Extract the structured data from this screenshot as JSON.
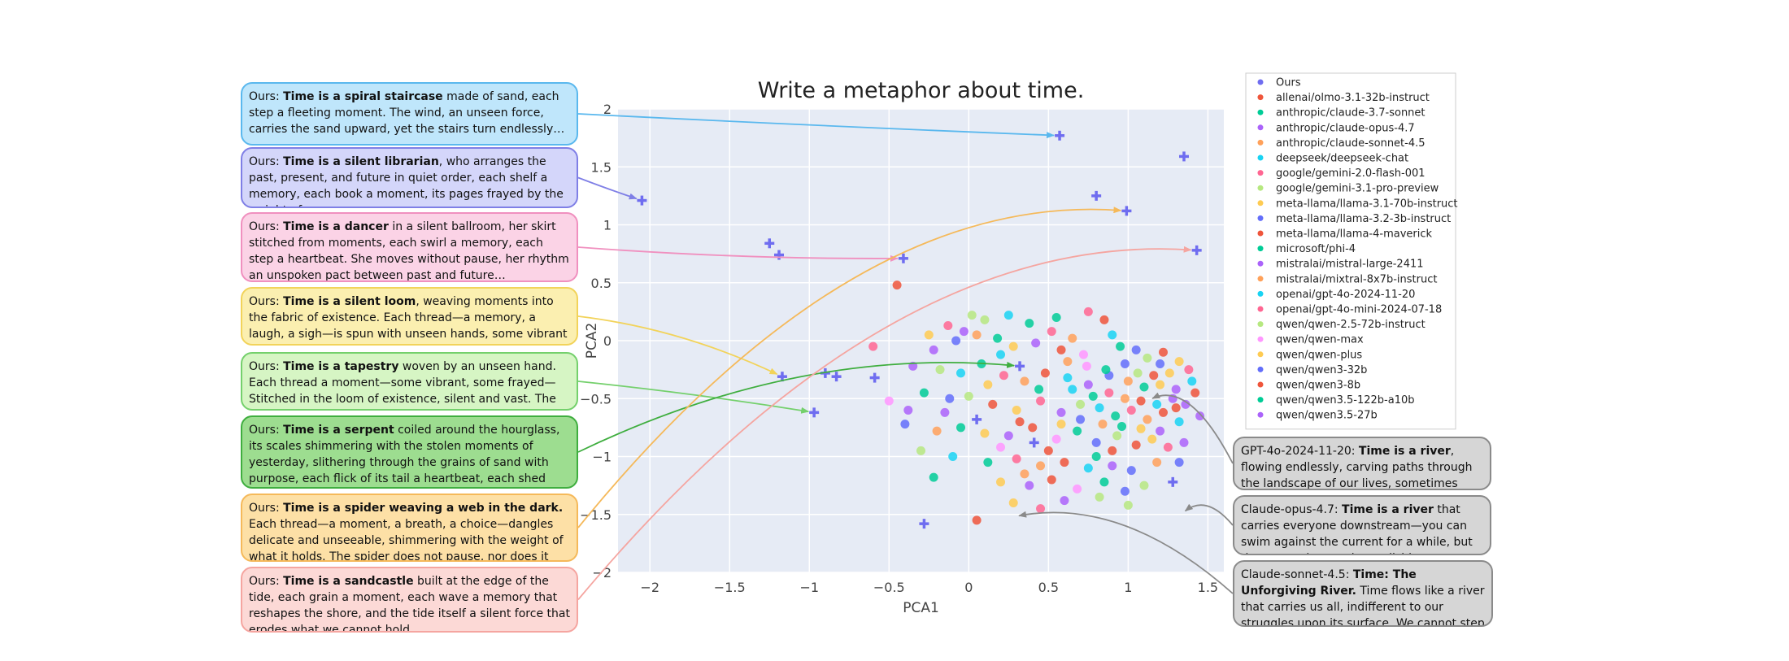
{
  "chart_data": {
    "type": "scatter",
    "title": "Write a metaphor about time.",
    "xlabel": "PCA1",
    "ylabel": "PCA2",
    "xlim": [
      -2.2,
      1.6
    ],
    "ylim": [
      -2.0,
      2.0
    ],
    "xticks": [
      -2,
      -1.5,
      -1,
      -0.5,
      0,
      0.5,
      1,
      1.5
    ],
    "xtick_labels": [
      "−2",
      "−1.5",
      "−1",
      "−0.5",
      "0",
      "0.5",
      "1",
      "1.5"
    ],
    "yticks": [
      2,
      1.5,
      1,
      0.5,
      0,
      -0.5,
      -1,
      -1.5,
      -2
    ],
    "ytick_labels": [
      "2",
      "1.5",
      "1",
      "0.5",
      "0",
      "−0.5",
      "−1",
      "−1.5",
      "−2"
    ],
    "grid": true,
    "background": "#e6ebf5",
    "legend_position": "right, outside plot",
    "ours": {
      "name": "Ours",
      "color": "#6f6df0",
      "marker": "plus",
      "points": [
        [
          0.57,
          1.77
        ],
        [
          1.35,
          1.59
        ],
        [
          -2.05,
          1.21
        ],
        [
          0.8,
          1.25
        ],
        [
          0.99,
          1.12
        ],
        [
          -1.25,
          0.84
        ],
        [
          -1.19,
          0.74
        ],
        [
          -0.41,
          0.71
        ],
        [
          1.43,
          0.78
        ],
        [
          -1.17,
          -0.31
        ],
        [
          -0.97,
          -0.62
        ],
        [
          -0.83,
          -0.31
        ],
        [
          -0.59,
          -0.32
        ],
        [
          -0.9,
          -0.28
        ],
        [
          0.05,
          -0.68
        ],
        [
          0.32,
          -0.22
        ],
        [
          1.28,
          -1.22
        ],
        [
          -0.28,
          -1.58
        ],
        [
          0.41,
          -0.88
        ]
      ]
    },
    "series": [
      {
        "name": "allenai/olmo-3.1-32b-instruct",
        "color": "#ef553b"
      },
      {
        "name": "anthropic/claude-3.7-sonnet",
        "color": "#00cc96"
      },
      {
        "name": "anthropic/claude-opus-4.7",
        "color": "#ab63fa"
      },
      {
        "name": "anthropic/claude-sonnet-4.5",
        "color": "#ffa15a"
      },
      {
        "name": "deepseek/deepseek-chat",
        "color": "#19d3f3"
      },
      {
        "name": "google/gemini-2.0-flash-001",
        "color": "#ff6692"
      },
      {
        "name": "google/gemini-3.1-pro-preview",
        "color": "#b6e880"
      },
      {
        "name": "meta-llama/llama-3.1-70b-instruct",
        "color": "#fecb52"
      },
      {
        "name": "meta-llama/llama-3.2-3b-instruct",
        "color": "#636efa"
      },
      {
        "name": "meta-llama/llama-4-maverick",
        "color": "#ef553b"
      },
      {
        "name": "microsoft/phi-4",
        "color": "#00cc96"
      },
      {
        "name": "mistralai/mistral-large-2411",
        "color": "#ab63fa"
      },
      {
        "name": "mistralai/mixtral-8x7b-instruct",
        "color": "#ffa15a"
      },
      {
        "name": "openai/gpt-4o-2024-11-20",
        "color": "#19d3f3"
      },
      {
        "name": "openai/gpt-4o-mini-2024-07-18",
        "color": "#ff6692"
      },
      {
        "name": "qwen/qwen-2.5-72b-instruct",
        "color": "#b6e880"
      },
      {
        "name": "qwen/qwen-max",
        "color": "#ff97ff"
      },
      {
        "name": "qwen/qwen-plus",
        "color": "#fecb52"
      },
      {
        "name": "qwen/qwen3-32b",
        "color": "#636efa"
      },
      {
        "name": "qwen/qwen3-8b",
        "color": "#ef553b"
      },
      {
        "name": "qwen/qwen3.5-122b-a10b",
        "color": "#00cc96"
      },
      {
        "name": "qwen/qwen3.5-27b",
        "color": "#ab63fa"
      }
    ],
    "cloud_points": [
      [
        -0.45,
        0.48
      ],
      [
        -0.25,
        0.05
      ],
      [
        -0.13,
        0.13
      ],
      [
        -0.03,
        0.08
      ],
      [
        0.1,
        0.18
      ],
      [
        0.25,
        0.22
      ],
      [
        0.38,
        0.15
      ],
      [
        0.52,
        0.08
      ],
      [
        0.65,
        0.02
      ],
      [
        0.85,
        0.18
      ],
      [
        0.9,
        0.05
      ],
      [
        -0.22,
        -0.08
      ],
      [
        -0.08,
        0.0
      ],
      [
        0.05,
        0.05
      ],
      [
        0.18,
        0.02
      ],
      [
        0.28,
        -0.05
      ],
      [
        0.42,
        -0.02
      ],
      [
        0.58,
        -0.08
      ],
      [
        0.72,
        -0.12
      ],
      [
        0.95,
        -0.05
      ],
      [
        1.05,
        -0.08
      ],
      [
        1.12,
        -0.15
      ],
      [
        1.22,
        -0.1
      ],
      [
        1.32,
        -0.18
      ],
      [
        1.38,
        -0.25
      ],
      [
        -0.35,
        -0.22
      ],
      [
        -0.18,
        -0.25
      ],
      [
        -0.05,
        -0.28
      ],
      [
        0.08,
        -0.2
      ],
      [
        0.22,
        -0.3
      ],
      [
        0.35,
        -0.35
      ],
      [
        0.48,
        -0.28
      ],
      [
        0.62,
        -0.32
      ],
      [
        0.75,
        -0.38
      ],
      [
        0.88,
        -0.3
      ],
      [
        1.0,
        -0.35
      ],
      [
        1.1,
        -0.4
      ],
      [
        1.2,
        -0.38
      ],
      [
        1.3,
        -0.42
      ],
      [
        1.42,
        -0.45
      ],
      [
        -0.5,
        -0.52
      ],
      [
        -0.28,
        -0.45
      ],
      [
        -0.12,
        -0.5
      ],
      [
        0.0,
        -0.48
      ],
      [
        0.15,
        -0.55
      ],
      [
        0.3,
        -0.6
      ],
      [
        0.45,
        -0.52
      ],
      [
        0.58,
        -0.62
      ],
      [
        0.7,
        -0.55
      ],
      [
        0.82,
        -0.58
      ],
      [
        0.92,
        -0.65
      ],
      [
        1.02,
        -0.6
      ],
      [
        1.12,
        -0.68
      ],
      [
        1.22,
        -0.62
      ],
      [
        1.32,
        -0.7
      ],
      [
        1.45,
        -0.65
      ],
      [
        -0.4,
        -0.72
      ],
      [
        -0.2,
        -0.78
      ],
      [
        -0.05,
        -0.75
      ],
      [
        0.1,
        -0.8
      ],
      [
        0.25,
        -0.82
      ],
      [
        0.4,
        -0.75
      ],
      [
        0.55,
        -0.85
      ],
      [
        0.68,
        -0.78
      ],
      [
        0.8,
        -0.88
      ],
      [
        0.93,
        -0.82
      ],
      [
        1.05,
        -0.9
      ],
      [
        1.15,
        -0.85
      ],
      [
        1.25,
        -0.92
      ],
      [
        1.35,
        -0.88
      ],
      [
        -0.3,
        -0.95
      ],
      [
        -0.1,
        -1.0
      ],
      [
        0.12,
        -1.05
      ],
      [
        0.3,
        -1.02
      ],
      [
        0.45,
        -1.08
      ],
      [
        0.6,
        -1.05
      ],
      [
        0.75,
        -1.1
      ],
      [
        0.9,
        -1.08
      ],
      [
        1.02,
        -1.12
      ],
      [
        1.18,
        -1.05
      ],
      [
        -0.22,
        -1.18
      ],
      [
        0.2,
        -1.22
      ],
      [
        0.38,
        -1.25
      ],
      [
        0.52,
        -1.2
      ],
      [
        0.68,
        -1.28
      ],
      [
        0.85,
        -1.22
      ],
      [
        0.98,
        -1.3
      ],
      [
        1.1,
        -1.25
      ],
      [
        0.05,
        -1.55
      ],
      [
        0.28,
        -1.4
      ],
      [
        0.45,
        -1.45
      ],
      [
        0.6,
        -1.38
      ],
      [
        0.82,
        -1.35
      ],
      [
        0.65,
        -0.42
      ],
      [
        0.78,
        -0.48
      ],
      [
        0.88,
        -0.45
      ],
      [
        0.98,
        -0.5
      ],
      [
        1.08,
        -0.52
      ],
      [
        1.18,
        -0.55
      ],
      [
        1.28,
        -0.5
      ],
      [
        0.7,
        -0.68
      ],
      [
        0.84,
        -0.72
      ],
      [
        0.96,
        -0.74
      ],
      [
        1.08,
        -0.76
      ],
      [
        1.2,
        -0.78
      ],
      [
        1.3,
        -0.58
      ],
      [
        0.74,
        -0.22
      ],
      [
        0.86,
        -0.25
      ],
      [
        0.98,
        -0.2
      ],
      [
        1.06,
        -0.28
      ],
      [
        1.16,
        -0.3
      ],
      [
        1.26,
        -0.28
      ],
      [
        -0.6,
        -0.05
      ],
      [
        -0.38,
        -0.6
      ],
      [
        0.02,
        0.22
      ],
      [
        0.2,
        -0.12
      ],
      [
        0.55,
        0.2
      ],
      [
        0.75,
        0.25
      ],
      [
        0.35,
        -1.15
      ],
      [
        0.5,
        -0.95
      ],
      [
        1.4,
        -0.35
      ],
      [
        1.36,
        -0.55
      ],
      [
        1.2,
        -0.2
      ],
      [
        0.62,
        -0.18
      ],
      [
        0.44,
        -0.42
      ],
      [
        0.12,
        -0.38
      ],
      [
        -0.15,
        -0.62
      ],
      [
        0.32,
        -0.7
      ],
      [
        0.2,
        -0.92
      ],
      [
        0.8,
        -1.0
      ],
      [
        1.32,
        -1.05
      ],
      [
        1.0,
        -1.42
      ],
      [
        0.9,
        -0.95
      ],
      [
        0.58,
        -0.72
      ]
    ],
    "annotations": [
      {
        "prefix": "Ours: ",
        "bold": "Time is a spiral staircase",
        "rest": " made of sand, each step a fleeting moment. The wind, an unseen force, carries the sand upward, yet the stairs turn endlessly…",
        "fill": "#bfe6fb",
        "border": "#5ab8ee",
        "target": [
          0.57,
          1.77
        ]
      },
      {
        "prefix": "Ours: ",
        "bold": "Time is a silent librarian",
        "rest": ", who arranges the past, present, and future in quiet order, each shelf a memory, each book a moment, its pages frayed by the weight of",
        "fill": "#d4d6fa",
        "border": "#7f7fe6",
        "target": [
          -2.05,
          1.21
        ]
      },
      {
        "prefix": "Ours: ",
        "bold": "Time is a dancer",
        "rest": " in a silent ballroom, her skirt stitched from moments, each swirl a memory, each step a heartbeat. She moves without pause, her rhythm an unspoken pact between past and future…",
        "fill": "#fbd3e6",
        "border": "#f090bf",
        "target": [
          -0.41,
          0.71
        ]
      },
      {
        "prefix": "Ours: ",
        "bold": "Time is a silent loom",
        "rest": ", weaving moments into the fabric of existence. Each thread—a memory, a laugh, a sigh—is spun with unseen hands, some vibrant as dawn…",
        "fill": "#fbefb0",
        "border": "#f2d35a",
        "target": [
          -1.17,
          -0.31
        ]
      },
      {
        "prefix": "Ours: ",
        "bold": "Time is a tapestry",
        "rest": " woven by an unseen hand. Each thread a moment—some vibrant, some frayed—Stitched in the loom of existence, silent and vast. The colors fade…",
        "fill": "#d6f5c4",
        "border": "#74d06c",
        "target": [
          -0.97,
          -0.62
        ]
      },
      {
        "prefix": "Ours: ",
        "bold": "Time is a serpent",
        "rest": " coiled around the hourglass, its scales shimmering with the stolen moments of yesterday, slithering through the grains of sand with purpose, each flick of its tail a heartbeat,  each shed skin a memory…",
        "fill": "#9ddd90",
        "border": "#3fae3f",
        "target": [
          0.32,
          -0.22
        ]
      },
      {
        "prefix": "Ours: ",
        "bold": "Time is a spider weaving a web in the dark.",
        "rest": " Each thread—a moment, a breath, a choice—dangles delicate and unseeable, shimmering with the weight of what it holds. The spider does not pause, nor does it regret…",
        "fill": "#fde0a6",
        "border": "#f5b95a",
        "target": [
          0.99,
          1.12
        ]
      },
      {
        "prefix": "Ours: ",
        "bold": "Time is a sandcastle",
        "rest": " built at the edge of the tide, each grain a moment, each wave a memory that reshapes the shore, and the tide itself a silent force that erodes what we cannot hold.",
        "fill": "#fcd9d6",
        "border": "#f5a5a0",
        "target": [
          1.43,
          0.78
        ]
      },
      {
        "prefix": "GPT-4o-2024-11-20: ",
        "bold": "Time is a river",
        "rest": ", flowing endlessly, carving paths through the landscape of our lives, sometimes",
        "fill": "#d6d6d6",
        "border": "#8a8a8a",
        "target": [
          1.12,
          -0.52
        ]
      },
      {
        "prefix": "Claude-opus-4.7: ",
        "bold": "Time is a river",
        "rest": " that carries everyone downstream—you can swim against the current for a while, but the water always wins, polishing your sharp edges…",
        "fill": "#d6d6d6",
        "border": "#8a8a8a",
        "target": [
          1.33,
          -1.5
        ]
      },
      {
        "prefix": "Claude-sonnet-4.5: ",
        "bold": "Time: The Unforgiving River.",
        "rest": " Time flows like a river that carries us all, indifferent to our struggles upon its surface. We cannot step into the same waters twice",
        "fill": "#d6d6d6",
        "border": "#8a8a8a",
        "target": [
          0.28,
          -1.52
        ]
      }
    ]
  }
}
